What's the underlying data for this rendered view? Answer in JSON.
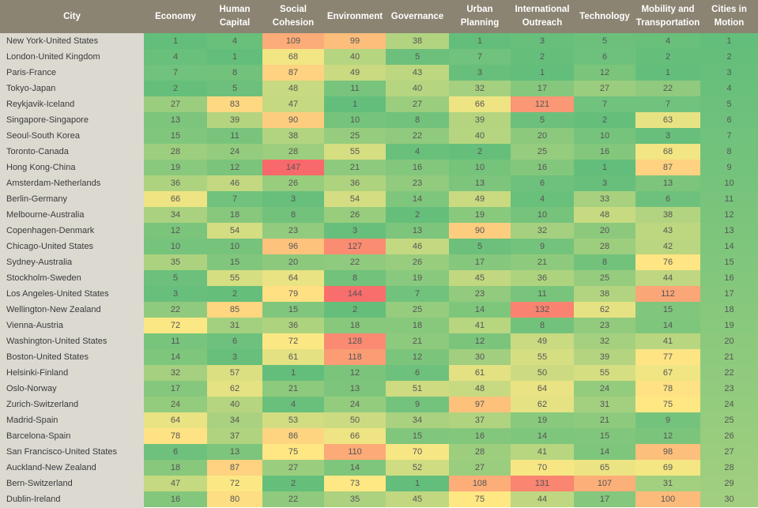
{
  "chart_data": {
    "type": "heatmap",
    "columns": [
      "City",
      "Economy",
      "Human\nCapital",
      "Social\nCohesion",
      "Environment",
      "Governance",
      "Urban\nPlanning",
      "International\nOutreach",
      "Technology",
      "Mobility and\nTransportation",
      "Cities in\nMotion"
    ],
    "rows": [
      {
        "city": "New York-United States",
        "values": [
          1,
          4,
          109,
          99,
          38,
          1,
          3,
          5,
          4,
          1
        ]
      },
      {
        "city": "London-United Kingdom",
        "values": [
          4,
          1,
          68,
          40,
          5,
          7,
          2,
          6,
          2,
          2
        ]
      },
      {
        "city": "Paris-France",
        "values": [
          7,
          8,
          87,
          49,
          43,
          3,
          1,
          12,
          1,
          3
        ]
      },
      {
        "city": "Tokyo-Japan",
        "values": [
          2,
          5,
          48,
          11,
          40,
          32,
          17,
          27,
          22,
          4
        ]
      },
      {
        "city": "Reykjavik-Iceland",
        "values": [
          27,
          83,
          47,
          1,
          27,
          66,
          121,
          7,
          7,
          5
        ]
      },
      {
        "city": "Singapore-Singapore",
        "values": [
          13,
          39,
          90,
          10,
          8,
          39,
          5,
          2,
          63,
          6
        ]
      },
      {
        "city": "Seoul-South Korea",
        "values": [
          15,
          11,
          38,
          25,
          22,
          40,
          20,
          10,
          3,
          7
        ]
      },
      {
        "city": "Toronto-Canada",
        "values": [
          28,
          24,
          28,
          55,
          4,
          2,
          25,
          16,
          68,
          8
        ]
      },
      {
        "city": "Hong Kong-China",
        "values": [
          19,
          12,
          147,
          21,
          16,
          10,
          16,
          1,
          87,
          9
        ]
      },
      {
        "city": "Amsterdam-Netherlands",
        "values": [
          36,
          46,
          26,
          36,
          23,
          13,
          6,
          3,
          13,
          10
        ]
      },
      {
        "city": "Berlin-Germany",
        "values": [
          66,
          7,
          3,
          54,
          14,
          49,
          4,
          33,
          6,
          11
        ]
      },
      {
        "city": "Melbourne-Australia",
        "values": [
          34,
          18,
          8,
          26,
          2,
          19,
          10,
          48,
          38,
          12
        ]
      },
      {
        "city": "Copenhagen-Denmark",
        "values": [
          12,
          54,
          23,
          3,
          13,
          90,
          32,
          20,
          43,
          13
        ]
      },
      {
        "city": "Chicago-United States",
        "values": [
          10,
          10,
          96,
          127,
          46,
          5,
          9,
          28,
          42,
          14
        ]
      },
      {
        "city": "Sydney-Australia",
        "values": [
          35,
          15,
          20,
          22,
          26,
          17,
          21,
          8,
          76,
          15
        ]
      },
      {
        "city": "Stockholm-Sweden",
        "values": [
          5,
          55,
          64,
          8,
          19,
          45,
          36,
          25,
          44,
          16
        ]
      },
      {
        "city": "Los Angeles-United States",
        "values": [
          3,
          2,
          79,
          144,
          7,
          23,
          11,
          38,
          112,
          17
        ]
      },
      {
        "city": "Wellington-New Zealand",
        "values": [
          22,
          85,
          15,
          2,
          25,
          14,
          132,
          62,
          15,
          18
        ]
      },
      {
        "city": "Vienna-Austria",
        "values": [
          72,
          31,
          36,
          18,
          18,
          41,
          8,
          23,
          14,
          19
        ]
      },
      {
        "city": "Washington-United States",
        "values": [
          11,
          6,
          72,
          128,
          21,
          12,
          49,
          32,
          41,
          20
        ]
      },
      {
        "city": "Boston-United States",
        "values": [
          14,
          3,
          61,
          118,
          12,
          30,
          55,
          39,
          77,
          21
        ]
      },
      {
        "city": "Helsinki-Finland",
        "values": [
          32,
          57,
          1,
          12,
          6,
          61,
          50,
          55,
          67,
          22
        ]
      },
      {
        "city": "Oslo-Norway",
        "values": [
          17,
          62,
          21,
          13,
          51,
          48,
          64,
          24,
          78,
          23
        ]
      },
      {
        "city": "Zurich-Switzerland",
        "values": [
          24,
          40,
          4,
          24,
          9,
          97,
          62,
          31,
          75,
          24
        ]
      },
      {
        "city": "Madrid-Spain",
        "values": [
          64,
          34,
          53,
          50,
          34,
          37,
          19,
          21,
          9,
          25
        ]
      },
      {
        "city": "Barcelona-Spain",
        "values": [
          78,
          37,
          86,
          66,
          15,
          16,
          14,
          15,
          12,
          26
        ]
      },
      {
        "city": "San Francisco-United States",
        "values": [
          6,
          13,
          75,
          110,
          70,
          28,
          41,
          14,
          98,
          27
        ]
      },
      {
        "city": "Auckland-New Zealand",
        "values": [
          18,
          87,
          27,
          14,
          52,
          27,
          70,
          65,
          69,
          28
        ]
      },
      {
        "city": "Bern-Switzerland",
        "values": [
          47,
          72,
          2,
          73,
          1,
          108,
          131,
          107,
          31,
          29
        ]
      },
      {
        "city": "Dublin-Ireland",
        "values": [
          16,
          80,
          22,
          35,
          45,
          75,
          44,
          17,
          100,
          30
        ]
      }
    ],
    "value_range": [
      1,
      147
    ],
    "colors": {
      "header_bg": "#8b8472",
      "header_text": "#ffffff",
      "city_bg": "#dcd9d1",
      "scale_low": "#63be7b",
      "scale_mid": "#ffe984",
      "scale_high": "#f8696b"
    }
  }
}
